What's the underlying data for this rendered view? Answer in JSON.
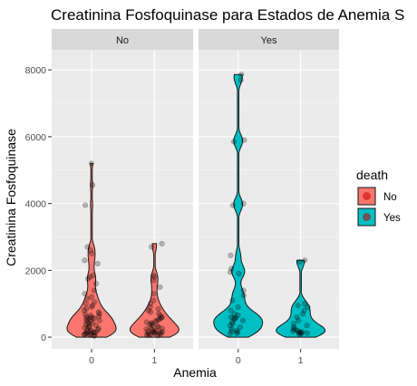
{
  "chart_data": {
    "type": "violin",
    "title": "Creatinina Fosfoquinase para Estados de Anemia S",
    "xlabel": "Anemia",
    "ylabel": "Creatinina Fosfoquinase",
    "ylim": [
      -350,
      8600
    ],
    "y_ticks": [
      0,
      2000,
      4000,
      6000,
      8000
    ],
    "y_tick_labels": [
      "0",
      "2000",
      "4000",
      "6000",
      "8000"
    ],
    "x_categories": [
      "0",
      "1"
    ],
    "facet_variable": "death",
    "facets": [
      {
        "label": "No",
        "color": "#F8766D",
        "groups": [
          {
            "anemia": "0",
            "max": 5200,
            "points": [
              5200,
              4550,
              3950,
              2700,
              2600,
              2500,
              2300,
              2200,
              1850,
              1800,
              1750,
              1600,
              1400,
              1300,
              1200,
              1150,
              1050,
              1000,
              950,
              900,
              850,
              800,
              750,
              700,
              680,
              650,
              620,
              600,
              590,
              580,
              560,
              540,
              520,
              500,
              480,
              450,
              420,
              400,
              380,
              350,
              320,
              300,
              280,
              260,
              240,
              220,
              200,
              180,
              160,
              150,
              140,
              130,
              120,
              110,
              100,
              90,
              80,
              60,
              50,
              40
            ]
          },
          {
            "anemia": "1",
            "max": 2800,
            "points": [
              2800,
              2700,
              1850,
              1800,
              1700,
              1500,
              1300,
              1100,
              1000,
              900,
              850,
              800,
              750,
              700,
              650,
              600,
              580,
              550,
              520,
              500,
              470,
              450,
              420,
              400,
              380,
              350,
              330,
              300,
              280,
              260,
              240,
              220,
              200,
              180,
              170,
              160,
              150,
              140,
              130,
              120,
              110,
              100,
              90,
              80,
              70,
              60,
              50
            ]
          }
        ]
      },
      {
        "label": "Yes",
        "color": "#00BFC4",
        "groups": [
          {
            "anemia": "0",
            "max": 7860,
            "points": [
              7860,
              7700,
              5900,
              5850,
              4000,
              3950,
              2450,
              2050,
              1950,
              1900,
              1400,
              1250,
              1100,
              900,
              800,
              700,
              650,
              600,
              580,
              560,
              540,
              500,
              450,
              400,
              350,
              300,
              250,
              200,
              180,
              150,
              120,
              100
            ]
          },
          {
            "anemia": "1",
            "max": 2300,
            "points": [
              2300,
              2250,
              1000,
              950,
              900,
              800,
              700,
              600,
              500,
              400,
              350,
              300,
              250,
              220,
              200,
              180,
              160,
              150,
              140,
              130,
              120,
              100,
              80
            ]
          }
        ]
      }
    ],
    "legend": {
      "title": "death",
      "position": "right",
      "entries": [
        {
          "label": "No",
          "color": "#F8766D"
        },
        {
          "label": "Yes",
          "color": "#00BFC4"
        }
      ]
    },
    "grid": true
  }
}
